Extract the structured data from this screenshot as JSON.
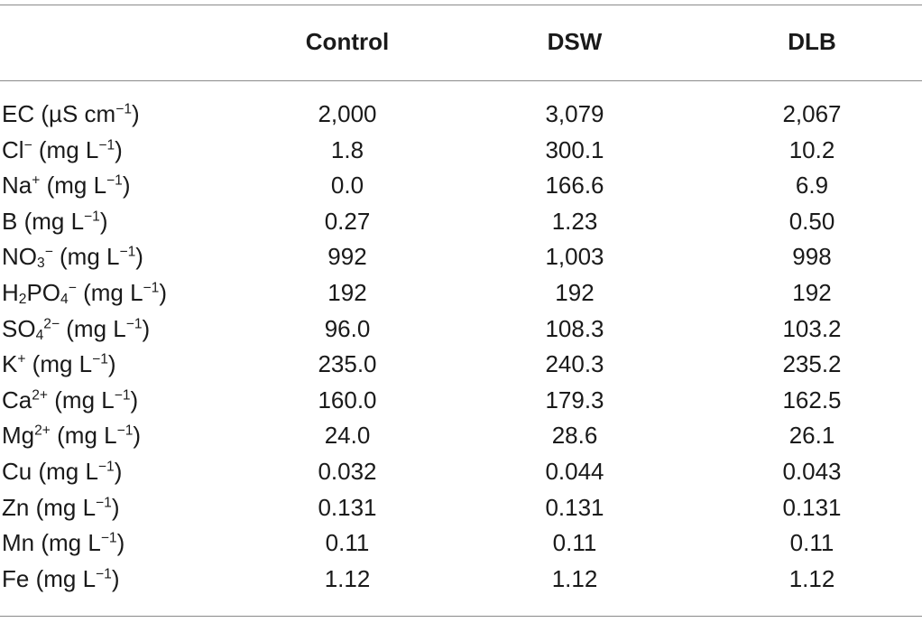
{
  "table": {
    "headers": [
      "",
      "Control",
      "DSW",
      "DLB"
    ],
    "rows": [
      {
        "label_html": "EC (µS cm<sup>−1</sup>)",
        "label_text": "EC (µS cm−1)",
        "values": [
          "2,000",
          "3,079",
          "2,067"
        ]
      },
      {
        "label_html": "Cl<sup>−</sup> (mg L<sup>−1</sup>)",
        "label_text": "Cl− (mg L−1)",
        "values": [
          "1.8",
          "300.1",
          "10.2"
        ]
      },
      {
        "label_html": "Na<sup>+</sup> (mg L<sup>−1</sup>)",
        "label_text": "Na+ (mg L−1)",
        "values": [
          "0.0",
          "166.6",
          "6.9"
        ]
      },
      {
        "label_html": "B (mg L<sup>−1</sup>)",
        "label_text": "B (mg L−1)",
        "values": [
          "0.27",
          "1.23",
          "0.50"
        ]
      },
      {
        "label_html": "NO<sub>3</sub><sup>−</sup> (mg L<sup>−1</sup>)",
        "label_text": "NO3− (mg L−1)",
        "values": [
          "992",
          "1,003",
          "998"
        ]
      },
      {
        "label_html": "H<sub>2</sub>PO<sub>4</sub><sup>−</sup> (mg L<sup>−1</sup>)",
        "label_text": "H2PO4− (mg L−1)",
        "values": [
          "192",
          "192",
          "192"
        ]
      },
      {
        "label_html": "SO<sub>4</sub><sup>2−</sup> (mg L<sup>−1</sup>)",
        "label_text": "SO42− (mg L−1)",
        "values": [
          "96.0",
          "108.3",
          "103.2"
        ]
      },
      {
        "label_html": "K<sup>+</sup> (mg L<sup>−1</sup>)",
        "label_text": "K+ (mg L−1)",
        "values": [
          "235.0",
          "240.3",
          "235.2"
        ]
      },
      {
        "label_html": "Ca<sup>2+</sup> (mg L<sup>−1</sup>)",
        "label_text": "Ca2+ (mg L−1)",
        "values": [
          "160.0",
          "179.3",
          "162.5"
        ]
      },
      {
        "label_html": "Mg<sup>2+</sup> (mg L<sup>−1</sup>)",
        "label_text": "Mg2+ (mg L−1)",
        "values": [
          "24.0",
          "28.6",
          "26.1"
        ]
      },
      {
        "label_html": "Cu (mg L<sup>−1</sup>)",
        "label_text": "Cu (mg L−1)",
        "values": [
          "0.032",
          "0.044",
          "0.043"
        ]
      },
      {
        "label_html": "Zn (mg L<sup>−1</sup>)",
        "label_text": "Zn (mg L−1)",
        "values": [
          "0.131",
          "0.131",
          "0.131"
        ]
      },
      {
        "label_html": "Mn (mg L<sup>−1</sup>)",
        "label_text": "Mn (mg L−1)",
        "values": [
          "0.11",
          "0.11",
          "0.11"
        ]
      },
      {
        "label_html": "Fe (mg L<sup>−1</sup>)",
        "label_text": "Fe (mg L−1)",
        "values": [
          "1.12",
          "1.12",
          "1.12"
        ]
      }
    ]
  }
}
